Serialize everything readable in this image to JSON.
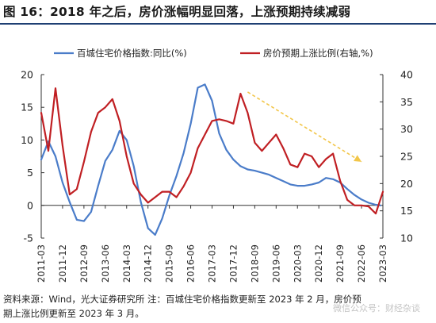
{
  "header": {
    "title": "图 16：2018 年之后，房价涨幅明显回落，上涨预期持续减弱"
  },
  "footnote": {
    "line1": "资料来源：Wind，光大证券研究所 注：百城住宅价格指数更新至 2023 年 2 月，房价预",
    "line2": "期上涨比例更新至 2023 年 3 月。"
  },
  "watermark": {
    "text": "微信公众号：财经杂谈"
  },
  "colors": {
    "series1": "#4a7cc9",
    "series2": "#c01f23",
    "arrow": "#f2c649",
    "title_rule": "#1f3f73"
  },
  "chart_data": {
    "type": "line",
    "xlabel": "",
    "ylabel": "",
    "x_range": [
      "2011-03",
      "2023-03"
    ],
    "x_ticks": [
      "2011-03",
      "2011-12",
      "2012-09",
      "2013-06",
      "2014-03",
      "2014-12",
      "2015-09",
      "2016-06",
      "2017-03",
      "2017-12",
      "2018-09",
      "2019-06",
      "2020-03",
      "2020-12",
      "2021-09",
      "2022-06",
      "2023-03"
    ],
    "y_left": {
      "ylim": [
        -5,
        20
      ],
      "ticks": [
        -5,
        0,
        5,
        10,
        15,
        20
      ]
    },
    "y_right": {
      "ylim": [
        10,
        40
      ],
      "ticks": [
        10,
        15,
        20,
        25,
        30,
        35,
        40
      ]
    },
    "legend": {
      "position": "top"
    },
    "grid": false,
    "series": [
      {
        "name": "百城住宅价格指数:同比(%)",
        "axis": "left",
        "color": "#4a7cc9",
        "points": [
          [
            "2011-03",
            7.0
          ],
          [
            "2011-06",
            9.8
          ],
          [
            "2011-09",
            7.5
          ],
          [
            "2011-12",
            3.5
          ],
          [
            "2012-03",
            0.5
          ],
          [
            "2012-06",
            -2.2
          ],
          [
            "2012-09",
            -2.4
          ],
          [
            "2012-12",
            -1.0
          ],
          [
            "2013-03",
            3.0
          ],
          [
            "2013-06",
            6.8
          ],
          [
            "2013-09",
            8.5
          ],
          [
            "2013-12",
            11.4
          ],
          [
            "2014-03",
            10.0
          ],
          [
            "2014-06",
            6.0
          ],
          [
            "2014-09",
            0.5
          ],
          [
            "2014-12",
            -3.5
          ],
          [
            "2015-03",
            -4.5
          ],
          [
            "2015-06",
            -2.0
          ],
          [
            "2015-09",
            1.5
          ],
          [
            "2015-12",
            4.5
          ],
          [
            "2016-03",
            8.0
          ],
          [
            "2016-06",
            12.5
          ],
          [
            "2016-09",
            18.0
          ],
          [
            "2016-12",
            18.5
          ],
          [
            "2017-03",
            16.0
          ],
          [
            "2017-06",
            11.0
          ],
          [
            "2017-09",
            8.5
          ],
          [
            "2017-12",
            7.0
          ],
          [
            "2018-03",
            6.0
          ],
          [
            "2018-06",
            5.5
          ],
          [
            "2018-09",
            5.3
          ],
          [
            "2018-12",
            5.0
          ],
          [
            "2019-03",
            4.7
          ],
          [
            "2019-06",
            4.2
          ],
          [
            "2019-09",
            3.7
          ],
          [
            "2019-12",
            3.2
          ],
          [
            "2020-03",
            3.0
          ],
          [
            "2020-06",
            3.0
          ],
          [
            "2020-09",
            3.2
          ],
          [
            "2020-12",
            3.5
          ],
          [
            "2021-03",
            4.2
          ],
          [
            "2021-06",
            4.0
          ],
          [
            "2021-09",
            3.5
          ],
          [
            "2021-12",
            2.5
          ],
          [
            "2022-03",
            1.6
          ],
          [
            "2022-06",
            0.9
          ],
          [
            "2022-09",
            0.4
          ],
          [
            "2022-12",
            0.1
          ],
          [
            "2023-02",
            0.0
          ]
        ]
      },
      {
        "name": "房价预期上涨比例(右轴,%)",
        "axis": "right",
        "color": "#c01f23",
        "points": [
          [
            "2011-03",
            33.0
          ],
          [
            "2011-06",
            26.0
          ],
          [
            "2011-09",
            37.5
          ],
          [
            "2011-12",
            27.0
          ],
          [
            "2012-03",
            18.0
          ],
          [
            "2012-06",
            19.0
          ],
          [
            "2012-09",
            24.0
          ],
          [
            "2012-12",
            29.5
          ],
          [
            "2013-03",
            33.0
          ],
          [
            "2013-06",
            34.0
          ],
          [
            "2013-09",
            35.5
          ],
          [
            "2013-12",
            31.5
          ],
          [
            "2014-03",
            25.0
          ],
          [
            "2014-06",
            20.0
          ],
          [
            "2014-09",
            18.0
          ],
          [
            "2014-12",
            16.5
          ],
          [
            "2015-03",
            17.5
          ],
          [
            "2015-06",
            18.5
          ],
          [
            "2015-09",
            18.5
          ],
          [
            "2015-12",
            17.5
          ],
          [
            "2016-03",
            19.5
          ],
          [
            "2016-06",
            22.0
          ],
          [
            "2016-09",
            26.5
          ],
          [
            "2016-12",
            29.0
          ],
          [
            "2017-03",
            31.5
          ],
          [
            "2017-06",
            31.8
          ],
          [
            "2017-09",
            31.5
          ],
          [
            "2017-12",
            31.0
          ],
          [
            "2018-03",
            36.5
          ],
          [
            "2018-06",
            33.0
          ],
          [
            "2018-09",
            27.5
          ],
          [
            "2018-12",
            26.0
          ],
          [
            "2019-03",
            27.5
          ],
          [
            "2019-06",
            29.0
          ],
          [
            "2019-09",
            26.5
          ],
          [
            "2019-12",
            23.5
          ],
          [
            "2020-03",
            23.0
          ],
          [
            "2020-06",
            25.5
          ],
          [
            "2020-09",
            25.0
          ],
          [
            "2020-12",
            23.0
          ],
          [
            "2021-03",
            24.5
          ],
          [
            "2021-06",
            25.5
          ],
          [
            "2021-09",
            20.5
          ],
          [
            "2021-12",
            17.0
          ],
          [
            "2022-03",
            16.0
          ],
          [
            "2022-06",
            16.0
          ],
          [
            "2022-09",
            15.8
          ],
          [
            "2022-12",
            14.5
          ],
          [
            "2023-03",
            18.5
          ]
        ]
      }
    ],
    "annotations": [
      {
        "type": "arrow",
        "style": "dashed",
        "color": "#f2c649",
        "from": [
          "2018-06",
          36.8
        ],
        "to": [
          "2022-06",
          24.0
        ],
        "axis": "right"
      }
    ]
  }
}
